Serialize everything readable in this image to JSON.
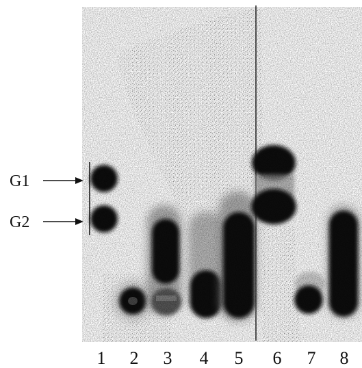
{
  "markers": [
    {
      "label": "G1"
    },
    {
      "label": "G2"
    }
  ],
  "lanes": [
    "1",
    "2",
    "3",
    "4",
    "5",
    "6",
    "7",
    "8"
  ]
}
